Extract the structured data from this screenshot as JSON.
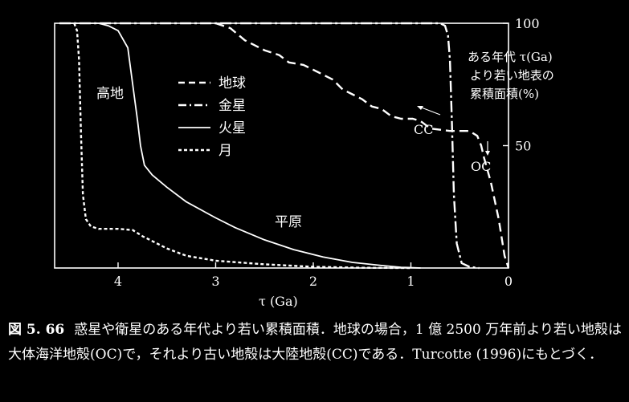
{
  "chart_data": {
    "type": "line",
    "xlabel": "τ (Ga)",
    "ylabel_right": [
      "ある年代 τ(Ga)",
      "より若い地表の",
      "累積面積(%)"
    ],
    "x_ticks": [
      4,
      3,
      2,
      1,
      0
    ],
    "y_ticks": [
      100,
      50
    ],
    "xlim": [
      4.65,
      0
    ],
    "ylim": [
      0,
      100
    ],
    "legend": {
      "position": "top-center",
      "entries": [
        {
          "name": "地球",
          "style": "dashed"
        },
        {
          "name": "金星",
          "style": "dash-dot"
        },
        {
          "name": "火星",
          "style": "solid"
        },
        {
          "name": "月",
          "style": "dotted"
        }
      ]
    },
    "series": [
      {
        "name": "地球",
        "style": "dashed",
        "points": [
          [
            3.0,
            100
          ],
          [
            2.85,
            98
          ],
          [
            2.7,
            93
          ],
          [
            2.6,
            91
          ],
          [
            2.5,
            89
          ],
          [
            2.35,
            87
          ],
          [
            2.25,
            84
          ],
          [
            2.1,
            83
          ],
          [
            1.95,
            80
          ],
          [
            1.8,
            77
          ],
          [
            1.7,
            73
          ],
          [
            1.6,
            71
          ],
          [
            1.5,
            69
          ],
          [
            1.4,
            66
          ],
          [
            1.3,
            65
          ],
          [
            1.2,
            62
          ],
          [
            1.1,
            61
          ],
          [
            0.98,
            61
          ],
          [
            0.9,
            60
          ],
          [
            0.8,
            57
          ],
          [
            0.6,
            56
          ],
          [
            0.4,
            56
          ],
          [
            0.32,
            54
          ],
          [
            0.28,
            50
          ],
          [
            0.25,
            45
          ],
          [
            0.18,
            35
          ],
          [
            0.1,
            20
          ],
          [
            0.04,
            5
          ],
          [
            0.0,
            0
          ]
        ]
      },
      {
        "name": "金星",
        "style": "dash-dot",
        "points": [
          [
            4.6,
            100
          ],
          [
            0.7,
            100
          ],
          [
            0.65,
            99
          ],
          [
            0.62,
            95
          ],
          [
            0.6,
            85
          ],
          [
            0.58,
            60
          ],
          [
            0.56,
            30
          ],
          [
            0.53,
            10
          ],
          [
            0.48,
            2
          ],
          [
            0.4,
            0.5
          ],
          [
            0.3,
            0
          ]
        ]
      },
      {
        "name": "火星",
        "style": "solid",
        "points": [
          [
            4.6,
            100
          ],
          [
            4.2,
            100
          ],
          [
            4.1,
            99
          ],
          [
            4.0,
            97
          ],
          [
            3.9,
            90
          ],
          [
            3.85,
            75
          ],
          [
            3.8,
            60
          ],
          [
            3.77,
            50
          ],
          [
            3.73,
            42
          ],
          [
            3.65,
            38
          ],
          [
            3.5,
            33
          ],
          [
            3.3,
            27
          ],
          [
            3.0,
            20.5
          ],
          [
            2.8,
            16.5
          ],
          [
            2.5,
            11.5
          ],
          [
            2.2,
            7.5
          ],
          [
            1.9,
            4.5
          ],
          [
            1.6,
            2.3
          ],
          [
            1.3,
            1
          ],
          [
            1.1,
            0.3
          ],
          [
            0.9,
            0
          ]
        ]
      },
      {
        "name": "月",
        "style": "dotted",
        "points": [
          [
            4.45,
            100
          ],
          [
            4.42,
            97
          ],
          [
            4.4,
            85
          ],
          [
            4.38,
            55
          ],
          [
            4.36,
            30
          ],
          [
            4.33,
            20
          ],
          [
            4.28,
            17
          ],
          [
            4.2,
            16
          ],
          [
            4.0,
            16
          ],
          [
            3.85,
            15.5
          ],
          [
            3.75,
            13
          ],
          [
            3.65,
            11
          ],
          [
            3.5,
            8
          ],
          [
            3.3,
            5
          ],
          [
            3.0,
            3
          ],
          [
            2.5,
            1.5
          ],
          [
            2.0,
            0.5
          ],
          [
            1.5,
            0.1
          ],
          [
            1.0,
            0
          ]
        ]
      }
    ],
    "annotations": {
      "highlands": "高地",
      "plains": "平原",
      "cc": "CC",
      "oc": "OC"
    }
  },
  "caption": {
    "fig": "図 5. 66",
    "text": "惑星や衛星のある年代より若い累積面積．地球の場合，1 億 2500 万年前より若い地殻は大体海洋地殻(OC)で，それより古い地殻は大陸地殻(CC)である．Turcotte (1996)にもとづく．"
  }
}
